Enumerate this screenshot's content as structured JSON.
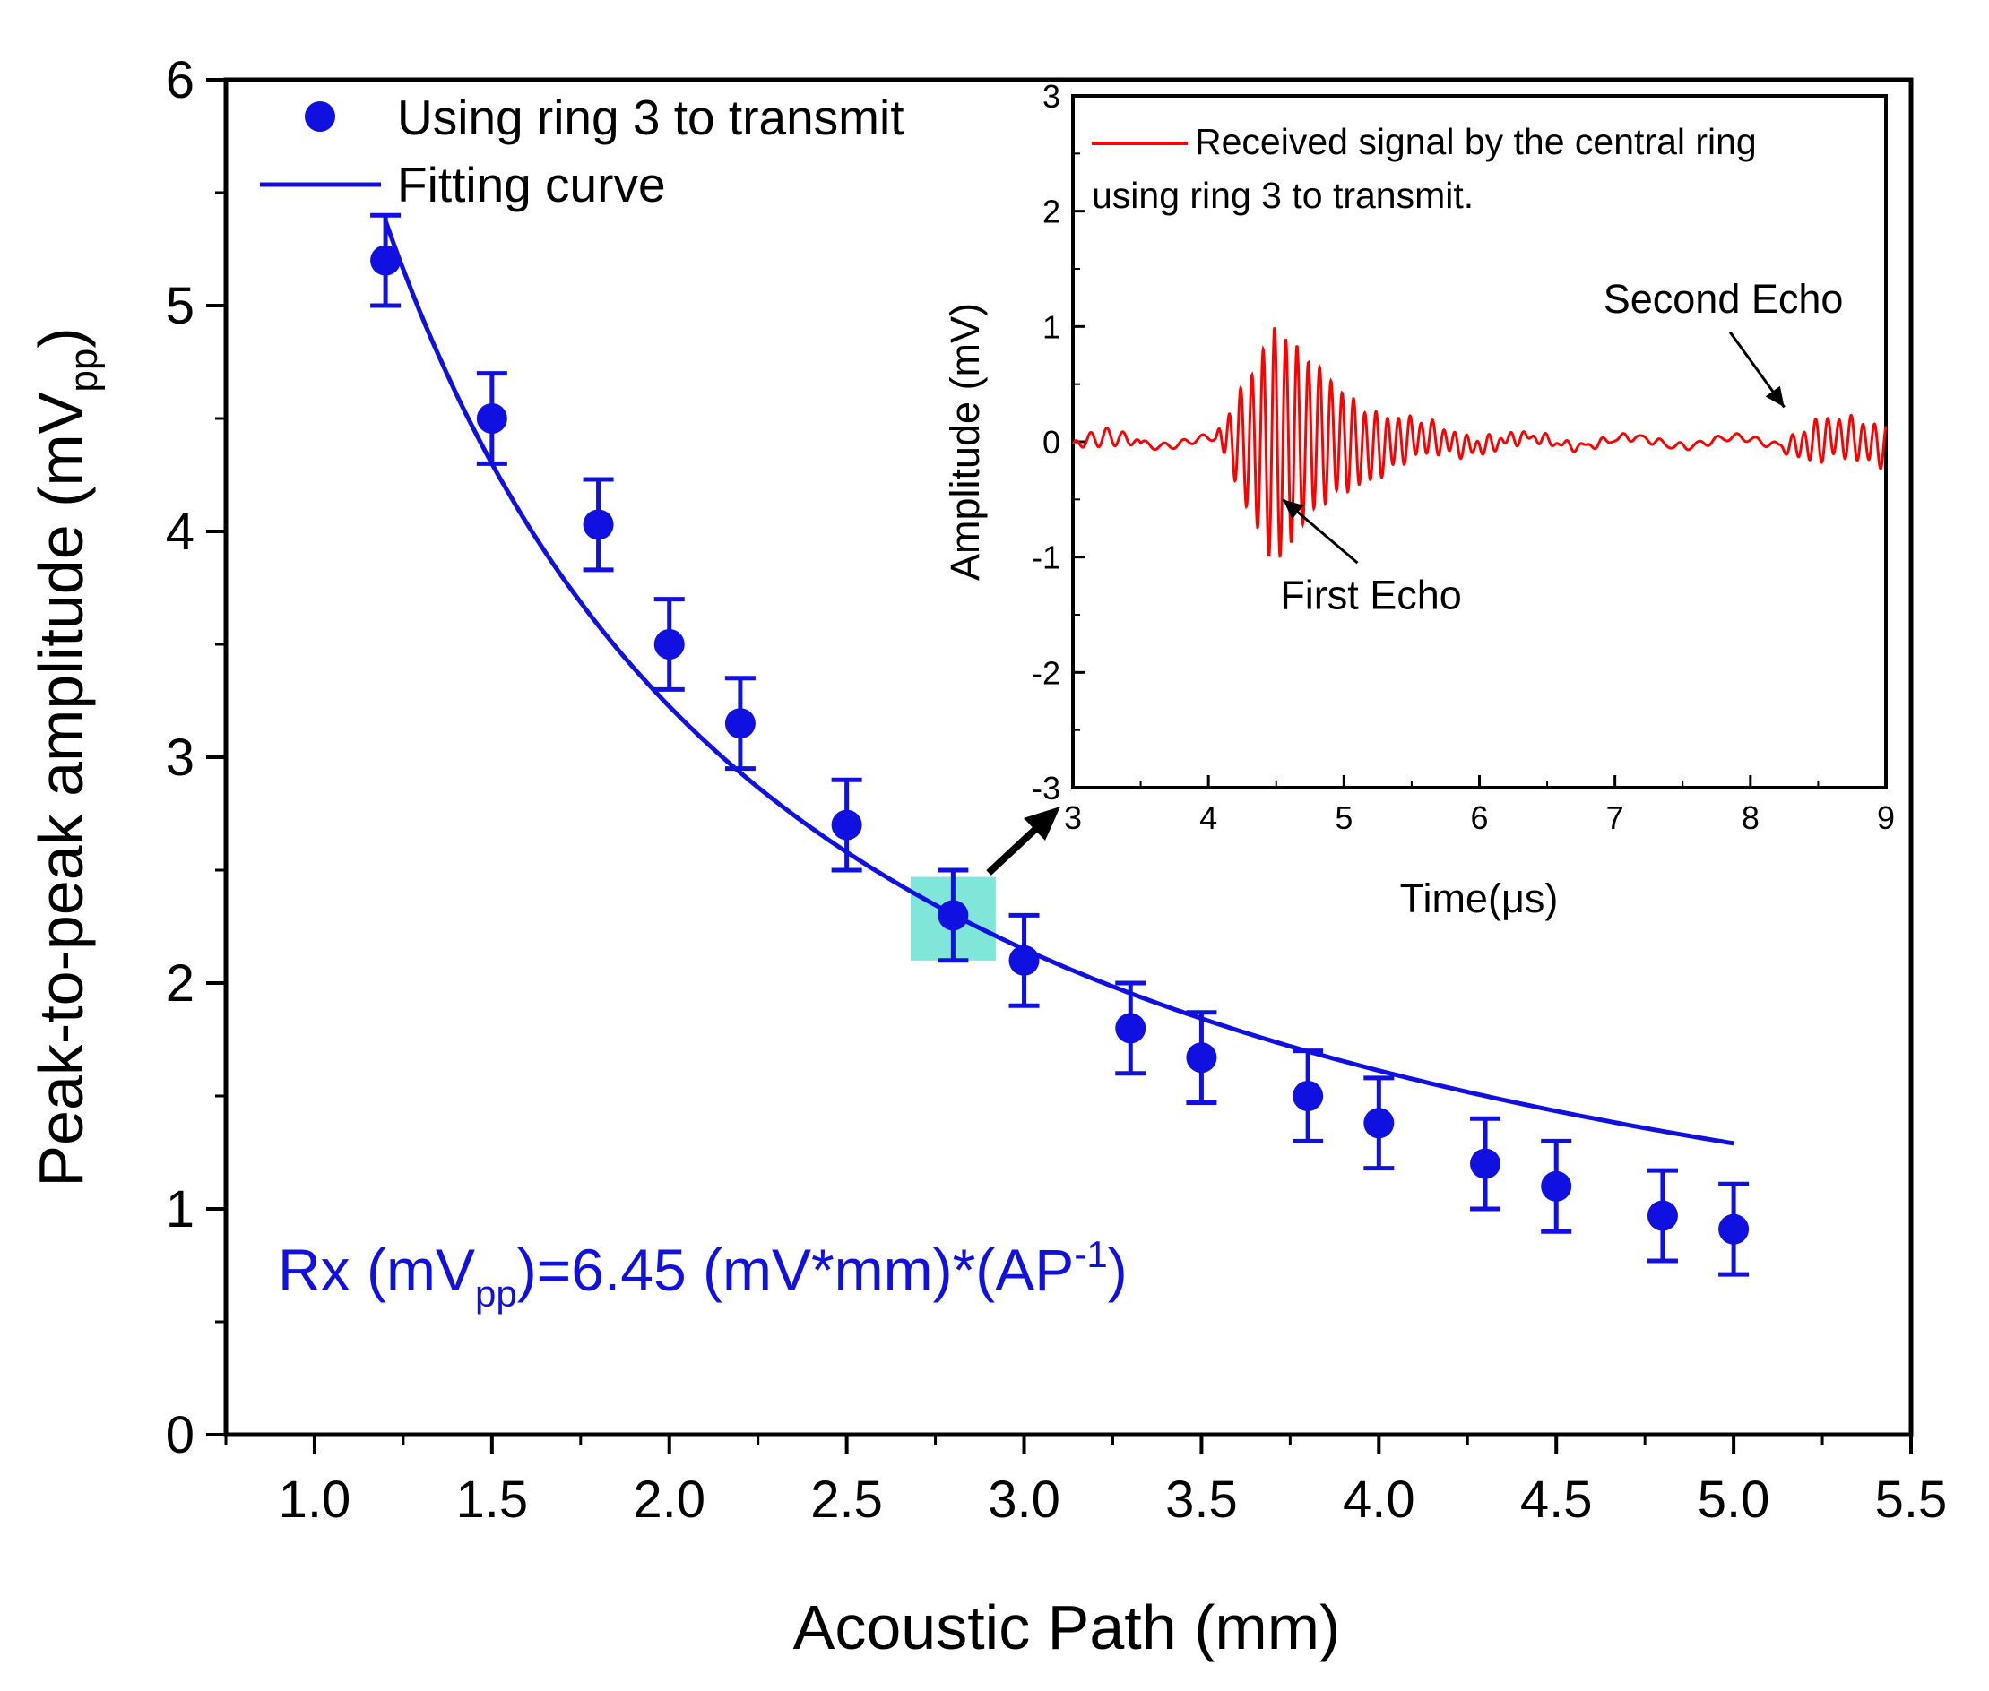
{
  "chart_data": [
    {
      "type": "scatter",
      "name": "main",
      "xlabel": "Acoustic Path (mm)",
      "ylabel_main": "Peak-to-peak amplitude (mV",
      "ylabel_sub": "pp",
      "ylabel_close": ")",
      "xlim": [
        0.75,
        5.5
      ],
      "ylim": [
        0,
        6
      ],
      "x_ticks": [
        1.0,
        1.5,
        2.0,
        2.5,
        3.0,
        3.5,
        4.0,
        4.5,
        5.0,
        5.5
      ],
      "x_tick_labels": [
        "1.0",
        "1.5",
        "2.0",
        "2.5",
        "3.0",
        "3.5",
        "4.0",
        "4.5",
        "5.0",
        "5.5"
      ],
      "y_ticks": [
        0,
        1,
        2,
        3,
        4,
        5,
        6
      ],
      "y_tick_labels": [
        "0",
        "1",
        "2",
        "3",
        "4",
        "5",
        "6"
      ],
      "legend": {
        "placement": "top-left",
        "points_label": "Using ring 3 to transmit",
        "fit_label": "Fitting curve"
      },
      "series": [
        {
          "name": "Using ring 3 to transmit",
          "kind": "points_with_error",
          "color": "#1010e0",
          "x": [
            1.2,
            1.5,
            1.8,
            2.0,
            2.2,
            2.5,
            2.8,
            3.0,
            3.3,
            3.5,
            3.8,
            4.0,
            4.3,
            4.5,
            4.8,
            5.0
          ],
          "y": [
            5.2,
            4.5,
            4.03,
            3.5,
            3.15,
            2.7,
            2.3,
            2.1,
            1.8,
            1.67,
            1.5,
            1.38,
            1.2,
            1.1,
            0.97,
            0.91
          ],
          "err": [
            0.2,
            0.2,
            0.2,
            0.2,
            0.2,
            0.2,
            0.2,
            0.2,
            0.2,
            0.2,
            0.2,
            0.2,
            0.2,
            0.2,
            0.2,
            0.2
          ]
        },
        {
          "name": "Fitting curve",
          "kind": "fit",
          "color": "#1010e0",
          "coefficient": 6.45,
          "x_range": [
            1.2,
            5.0
          ]
        }
      ],
      "equation": {
        "a": "Rx (mV",
        "sub": "pp",
        "b": ")=6.45 (mV*mm)*(AP",
        "sup": "-1",
        "c": ")"
      },
      "highlight": {
        "x_range": [
          2.68,
          2.92
        ],
        "y_range": [
          2.1,
          2.47
        ],
        "color": "#7fe6d9"
      }
    },
    {
      "type": "line",
      "name": "inset",
      "xlabel": "Time(μs)",
      "ylabel": "Amplitude (mV)",
      "xlim": [
        3,
        9
      ],
      "ylim": [
        -3,
        3
      ],
      "x_ticks": [
        3,
        4,
        5,
        6,
        7,
        8,
        9
      ],
      "x_tick_labels": [
        "3",
        "4",
        "5",
        "6",
        "7",
        "8",
        "9"
      ],
      "y_ticks": [
        -3,
        -2,
        -1,
        0,
        1,
        2,
        3
      ],
      "y_tick_labels": [
        "-3",
        "-2",
        "-1",
        "0",
        "1",
        "2",
        "3"
      ],
      "legend_line1": "Received signal by the central ring",
      "legend_line2": "using ring 3 to transmit.",
      "signal_color": "#ff0000",
      "annotations": [
        {
          "text": "First Echo",
          "x": 5.2,
          "y": -1.45,
          "arrow_from": [
            5.1,
            -1.05
          ],
          "arrow_to": [
            4.55,
            -0.5
          ]
        },
        {
          "text": "Second Echo",
          "x": 7.8,
          "y": 1.12,
          "arrow_from": [
            7.85,
            0.95
          ],
          "arrow_to": [
            8.25,
            0.3
          ]
        }
      ]
    }
  ]
}
